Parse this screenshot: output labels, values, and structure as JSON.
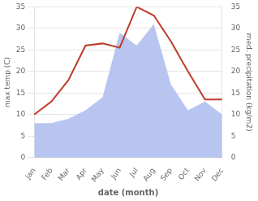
{
  "chart_data": {
    "type": "line",
    "xlabel": "date (month)",
    "ylabel": "max temp (C)",
    "y2label": "med. precipitation (kg/m2)",
    "categories": [
      "Jan",
      "Feb",
      "Mar",
      "Apr",
      "May",
      "Jun",
      "Jul",
      "Aug",
      "Sep",
      "Oct",
      "Nov",
      "Dec"
    ],
    "series": [
      {
        "type": "area",
        "axis": "y2",
        "color": "#b8c5f0",
        "values": [
          8,
          8,
          9,
          11,
          14,
          29,
          26,
          31,
          17,
          11,
          13,
          10
        ]
      },
      {
        "type": "line",
        "color": "#c0392b",
        "values": [
          10,
          13,
          18,
          26,
          26.5,
          25.5,
          35,
          33,
          27,
          20,
          13.5,
          13.5
        ]
      }
    ],
    "ylim": [
      0,
      35
    ],
    "yticks": [
      0,
      5,
      10,
      15,
      20,
      25,
      30,
      35
    ],
    "y2lim": [
      0,
      35
    ],
    "y2ticks": [
      0,
      5,
      10,
      15,
      20,
      25,
      30,
      35
    ],
    "grid": true
  }
}
